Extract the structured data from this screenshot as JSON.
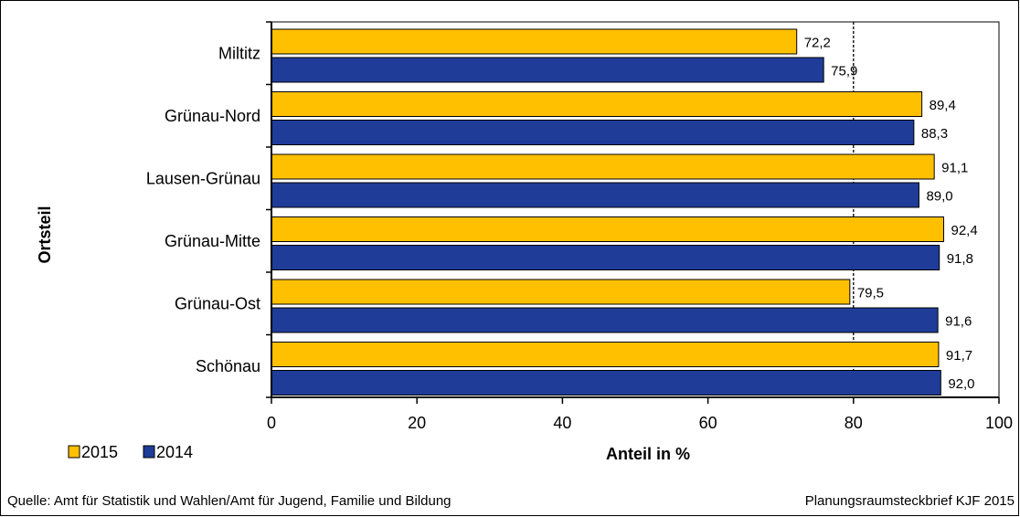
{
  "chart_data": {
    "type": "bar",
    "orientation": "horizontal",
    "categories": [
      "Miltitz",
      "Grünau-Nord",
      "Lausen-Grünau",
      "Grünau-Mitte",
      "Grünau-Ost",
      "Schönau"
    ],
    "series": [
      {
        "name": "2015",
        "color": "#FFC000",
        "values": [
          72.2,
          89.4,
          91.1,
          92.4,
          79.5,
          91.7
        ],
        "labels": [
          "72,2",
          "89,4",
          "91,1",
          "92,4",
          "79,5",
          "91,7"
        ]
      },
      {
        "name": "2014",
        "color": "#1F3C99",
        "values": [
          75.9,
          88.3,
          89.0,
          91.8,
          91.6,
          92.0
        ],
        "labels": [
          "75,9",
          "88,3",
          "89,0",
          "91,8",
          "91,6",
          "92,0"
        ]
      }
    ],
    "xlabel": "Anteil in %",
    "ylabel": "Ortsteil",
    "xlim": [
      0,
      100
    ],
    "xticks": [
      0,
      20,
      40,
      60,
      80,
      100
    ],
    "reference_line": 80,
    "grid": false,
    "legend_position": "bottom-left"
  },
  "footer": {
    "source": "Quelle: Amt für Statistik und Wahlen/Amt für Jugend, Familie und Bildung",
    "brief": "Planungsraumsteckbrief KJF 2015"
  }
}
